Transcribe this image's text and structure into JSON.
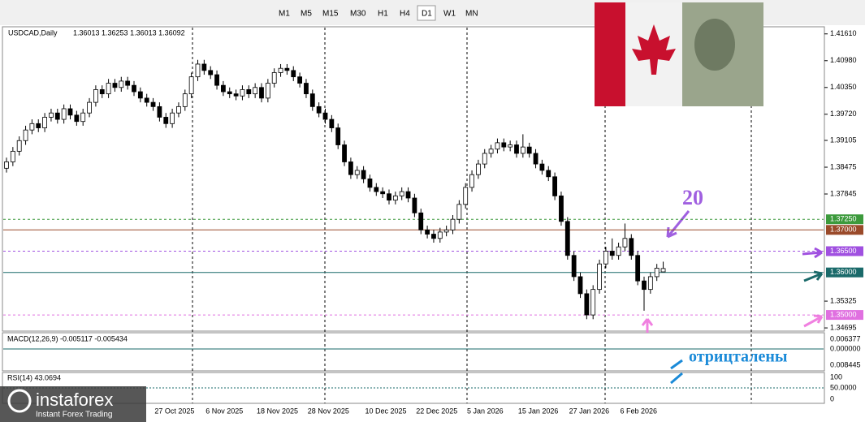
{
  "toolbar": {
    "timeframes": [
      "M1",
      "M5",
      "M15",
      "M30",
      "H1",
      "H4",
      "D1",
      "W1",
      "MN"
    ],
    "active": "D1"
  },
  "chart_data": {
    "type": "candlestick",
    "title": "USDCAD,Daily",
    "ohlc_header": "1.36013 1.36253 1.36013 1.36092",
    "candles": [
      [
        1.3845,
        1.387,
        1.3835,
        1.386
      ],
      [
        1.386,
        1.3895,
        1.385,
        1.3885
      ],
      [
        1.3885,
        1.392,
        1.3875,
        1.391
      ],
      [
        1.391,
        1.3945,
        1.39,
        1.3935
      ],
      [
        1.3935,
        1.396,
        1.3925,
        1.395
      ],
      [
        1.395,
        1.396,
        1.393,
        1.394
      ],
      [
        1.394,
        1.3975,
        1.393,
        1.3965
      ],
      [
        1.3965,
        1.3985,
        1.3955,
        1.3975
      ],
      [
        1.3975,
        1.3985,
        1.395,
        1.396
      ],
      [
        1.396,
        1.3995,
        1.395,
        1.3985
      ],
      [
        1.3985,
        1.3995,
        1.396,
        1.397
      ],
      [
        1.397,
        1.398,
        1.3945,
        1.3955
      ],
      [
        1.3955,
        1.3985,
        1.3945,
        1.3975
      ],
      [
        1.3975,
        1.401,
        1.3965,
        1.4
      ],
      [
        1.4,
        1.404,
        1.399,
        1.403
      ],
      [
        1.403,
        1.404,
        1.401,
        1.402
      ],
      [
        1.402,
        1.4055,
        1.401,
        1.4045
      ],
      [
        1.4045,
        1.4055,
        1.4025,
        1.4035
      ],
      [
        1.4035,
        1.406,
        1.4025,
        1.405
      ],
      [
        1.405,
        1.406,
        1.403,
        1.404
      ],
      [
        1.404,
        1.405,
        1.4015,
        1.4025
      ],
      [
        1.4025,
        1.4035,
        1.4,
        1.401
      ],
      [
        1.401,
        1.402,
        1.399,
        1.4
      ],
      [
        1.4,
        1.401,
        1.398,
        1.399
      ],
      [
        1.399,
        1.4,
        1.3955,
        1.3965
      ],
      [
        1.3965,
        1.3975,
        1.394,
        1.395
      ],
      [
        1.395,
        1.3985,
        1.394,
        1.3975
      ],
      [
        1.3975,
        1.4,
        1.3965,
        1.399
      ],
      [
        1.399,
        1.403,
        1.398,
        1.402
      ],
      [
        1.402,
        1.407,
        1.401,
        1.406
      ],
      [
        1.406,
        1.41,
        1.405,
        1.409
      ],
      [
        1.409,
        1.41,
        1.4065,
        1.4075
      ],
      [
        1.4075,
        1.4085,
        1.4055,
        1.4065
      ],
      [
        1.4065,
        1.4075,
        1.403,
        1.404
      ],
      [
        1.404,
        1.405,
        1.4015,
        1.4025
      ],
      [
        1.4025,
        1.4035,
        1.401,
        1.402
      ],
      [
        1.402,
        1.403,
        1.4005,
        1.4015
      ],
      [
        1.4015,
        1.404,
        1.4005,
        1.403
      ],
      [
        1.403,
        1.404,
        1.401,
        1.402
      ],
      [
        1.402,
        1.4045,
        1.401,
        1.4035
      ],
      [
        1.4035,
        1.4045,
        1.4,
        1.401
      ],
      [
        1.401,
        1.4055,
        1.4,
        1.4045
      ],
      [
        1.4045,
        1.408,
        1.4035,
        1.407
      ],
      [
        1.407,
        1.409,
        1.406,
        1.408
      ],
      [
        1.408,
        1.409,
        1.4065,
        1.4075
      ],
      [
        1.4075,
        1.4085,
        1.405,
        1.406
      ],
      [
        1.406,
        1.407,
        1.4035,
        1.4045
      ],
      [
        1.4045,
        1.4055,
        1.401,
        1.402
      ],
      [
        1.402,
        1.403,
        1.398,
        1.399
      ],
      [
        1.399,
        1.4,
        1.3965,
        1.3975
      ],
      [
        1.3975,
        1.3985,
        1.395,
        1.396
      ],
      [
        1.396,
        1.397,
        1.393,
        1.394
      ],
      [
        1.394,
        1.395,
        1.389,
        1.39
      ],
      [
        1.39,
        1.391,
        1.385,
        1.386
      ],
      [
        1.386,
        1.387,
        1.382,
        1.383
      ],
      [
        1.383,
        1.385,
        1.382,
        1.384
      ],
      [
        1.384,
        1.385,
        1.381,
        1.382
      ],
      [
        1.382,
        1.383,
        1.379,
        1.38
      ],
      [
        1.38,
        1.381,
        1.378,
        1.379
      ],
      [
        1.379,
        1.38,
        1.3775,
        1.3785
      ],
      [
        1.3785,
        1.3795,
        1.376,
        1.377
      ],
      [
        1.377,
        1.379,
        1.376,
        1.378
      ],
      [
        1.378,
        1.38,
        1.377,
        1.379
      ],
      [
        1.379,
        1.38,
        1.3765,
        1.3775
      ],
      [
        1.3775,
        1.3785,
        1.373,
        1.374
      ],
      [
        1.374,
        1.375,
        1.369,
        1.37
      ],
      [
        1.37,
        1.371,
        1.368,
        1.369
      ],
      [
        1.369,
        1.37,
        1.367,
        1.368
      ],
      [
        1.368,
        1.3705,
        1.367,
        1.3695
      ],
      [
        1.3695,
        1.371,
        1.3685,
        1.37
      ],
      [
        1.37,
        1.3735,
        1.369,
        1.3725
      ],
      [
        1.3725,
        1.377,
        1.3715,
        1.376
      ],
      [
        1.376,
        1.381,
        1.375,
        1.38
      ],
      [
        1.38,
        1.384,
        1.379,
        1.383
      ],
      [
        1.383,
        1.3865,
        1.382,
        1.3855
      ],
      [
        1.3855,
        1.389,
        1.3845,
        1.388
      ],
      [
        1.388,
        1.39,
        1.387,
        1.389
      ],
      [
        1.389,
        1.3915,
        1.388,
        1.3905
      ],
      [
        1.3905,
        1.3915,
        1.3885,
        1.3895
      ],
      [
        1.3895,
        1.391,
        1.3885,
        1.39
      ],
      [
        1.39,
        1.391,
        1.387,
        1.388
      ],
      [
        1.388,
        1.3925,
        1.387,
        1.3895
      ],
      [
        1.3895,
        1.3905,
        1.387,
        1.388
      ],
      [
        1.388,
        1.389,
        1.3845,
        1.3855
      ],
      [
        1.3855,
        1.3865,
        1.383,
        1.384
      ],
      [
        1.384,
        1.385,
        1.3815,
        1.3825
      ],
      [
        1.3825,
        1.3835,
        1.377,
        1.378
      ],
      [
        1.378,
        1.379,
        1.371,
        1.372
      ],
      [
        1.372,
        1.373,
        1.363,
        1.364
      ],
      [
        1.364,
        1.365,
        1.358,
        1.359
      ],
      [
        1.359,
        1.36,
        1.354,
        1.355
      ],
      [
        1.355,
        1.356,
        1.349,
        1.35
      ],
      [
        1.35,
        1.357,
        1.349,
        1.356
      ],
      [
        1.356,
        1.363,
        1.355,
        1.362
      ],
      [
        1.362,
        1.366,
        1.361,
        1.365
      ],
      [
        1.365,
        1.368,
        1.363,
        1.364
      ],
      [
        1.364,
        1.367,
        1.363,
        1.366
      ],
      [
        1.366,
        1.3715,
        1.365,
        1.368
      ],
      [
        1.368,
        1.369,
        1.363,
        1.364
      ],
      [
        1.364,
        1.365,
        1.357,
        1.358
      ],
      [
        1.358,
        1.359,
        1.351,
        1.356
      ],
      [
        1.356,
        1.36,
        1.355,
        1.359
      ],
      [
        1.359,
        1.362,
        1.358,
        1.361
      ],
      [
        1.36013,
        1.36253,
        1.36013,
        1.36092
      ]
    ],
    "categories": [
      null,
      null,
      null,
      null,
      null,
      null,
      null,
      null,
      null,
      null,
      null,
      null,
      null,
      null,
      null,
      null,
      null,
      null,
      null,
      null,
      null,
      null,
      null,
      null,
      "27 Oct 2025",
      null,
      null,
      null,
      null,
      null,
      null,
      null,
      "6 Nov 2025",
      null,
      null,
      null,
      null,
      null,
      null,
      null,
      "18 Nov 2025",
      null,
      null,
      null,
      null,
      null,
      null,
      null,
      "28 Nov 2025",
      null,
      null,
      null,
      null,
      null,
      null,
      null,
      null,
      "10 Dec 2025",
      null,
      null,
      null,
      null,
      null,
      null,
      null,
      "22 Dec 2025",
      null,
      null,
      null,
      null,
      null,
      null,
      null,
      "5 Jan 2026",
      null,
      null,
      null,
      null,
      null,
      null,
      null,
      "15 Jan 2026",
      null,
      null,
      null,
      null,
      null,
      null,
      null,
      "27 Jan 2026",
      null,
      null,
      null,
      null,
      null,
      null,
      null,
      "6 Feb 2026",
      null,
      null,
      null,
      null,
      null,
      null
    ],
    "ylim": [
      1.3462,
      1.4172
    ],
    "yticks": [
      {
        "value": 1.4161,
        "label": "1.41610"
      },
      {
        "value": 1.4098,
        "label": "1.40980"
      },
      {
        "value": 1.4035,
        "label": "1.40350"
      },
      {
        "value": 1.3972,
        "label": "1.39720"
      },
      {
        "value": 1.39105,
        "label": "1.39105"
      },
      {
        "value": 1.38475,
        "label": "1.38475"
      },
      {
        "value": 1.37845,
        "label": "1.37845"
      },
      {
        "value": 1.35325,
        "label": "1.35325"
      },
      {
        "value": 1.34695,
        "label": "1.34695"
      }
    ],
    "levels": [
      {
        "value": 1.3725,
        "label": "1.37250",
        "color": "#3c9a3c"
      },
      {
        "value": 1.37,
        "label": "1.37000",
        "color": "#9a4a2a"
      },
      {
        "value": 1.365,
        "label": "1.36500",
        "color": "#a050e0"
      },
      {
        "value": 1.36,
        "label": "1.36000",
        "color": "#1a6a6a"
      },
      {
        "value": 1.35,
        "label": "1.35000",
        "color": "#e070e0"
      }
    ],
    "macd": {
      "label": "MACD(12,26,9) -0.005117 -0.005434",
      "ticks": [
        "0.006377",
        "0.000000",
        "0.008445"
      ]
    },
    "rsi": {
      "label": "RSI(14) 43.0694",
      "ticks": [
        "100",
        "50.0000",
        "0"
      ]
    },
    "annotations": [
      "20",
      "отрицталены"
    ]
  },
  "logo": {
    "name": "instaforex",
    "tagline": "Instant Forex Trading"
  }
}
